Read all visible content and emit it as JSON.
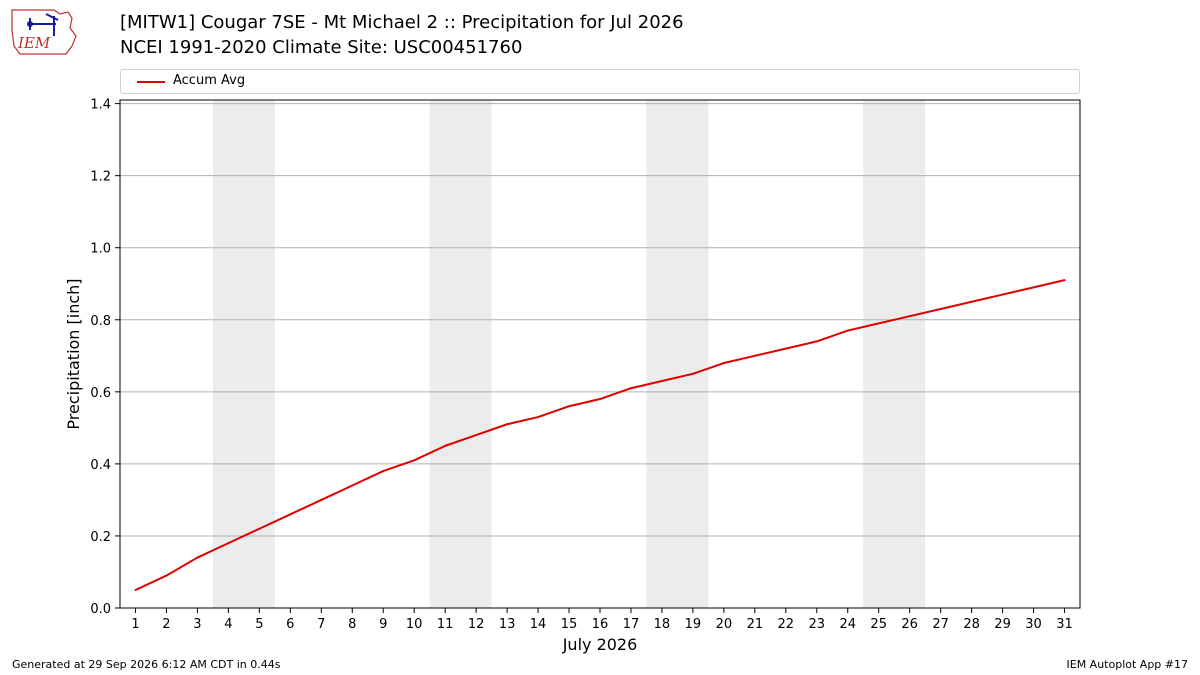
{
  "header": {
    "logo_text": "IEM",
    "title_line1": "[MITW1] Cougar 7SE - Mt Michael 2 :: Precipitation for Jul 2026",
    "title_line2": "NCEI 1991-2020 Climate Site: USC00451760"
  },
  "footer": {
    "left": "Generated at 29 Sep 2026 6:12 AM CDT in 0.44s",
    "right": "IEM Autoplot App #17"
  },
  "colors": {
    "series": "#e00000",
    "weekend_band": "#ececec",
    "grid": "#b0b0b0"
  },
  "chart_data": {
    "type": "line",
    "title": "[MITW1] Cougar 7SE - Mt Michael 2 :: Precipitation for Jul 2026",
    "subtitle": "NCEI 1991-2020 Climate Site: USC00451760",
    "xlabel": "July 2026",
    "ylabel": "Precipitation [inch]",
    "x": [
      1,
      2,
      3,
      4,
      5,
      6,
      7,
      8,
      9,
      10,
      11,
      12,
      13,
      14,
      15,
      16,
      17,
      18,
      19,
      20,
      21,
      22,
      23,
      24,
      25,
      26,
      27,
      28,
      29,
      30,
      31
    ],
    "xlim": [
      0.5,
      31.5
    ],
    "ylim": [
      0,
      1.41
    ],
    "yticks": [
      "0.0",
      "0.2",
      "0.4",
      "0.6",
      "0.8",
      "1.0",
      "1.2",
      "1.4"
    ],
    "ytick_values": [
      0,
      0.2,
      0.4,
      0.6,
      0.8,
      1.0,
      1.2,
      1.4
    ],
    "grid": "horizontal",
    "legend": "top",
    "weekend_bands": [
      [
        4,
        5
      ],
      [
        11,
        12
      ],
      [
        18,
        19
      ],
      [
        25,
        26
      ]
    ],
    "series": [
      {
        "name": "Accum Avg",
        "values": [
          0.05,
          0.09,
          0.14,
          0.18,
          0.22,
          0.26,
          0.3,
          0.34,
          0.38,
          0.41,
          0.45,
          0.48,
          0.51,
          0.53,
          0.56,
          0.58,
          0.61,
          0.63,
          0.65,
          0.68,
          0.7,
          0.72,
          0.74,
          0.77,
          0.79,
          0.81,
          0.83,
          0.85,
          0.87,
          0.89,
          0.91
        ]
      }
    ]
  }
}
